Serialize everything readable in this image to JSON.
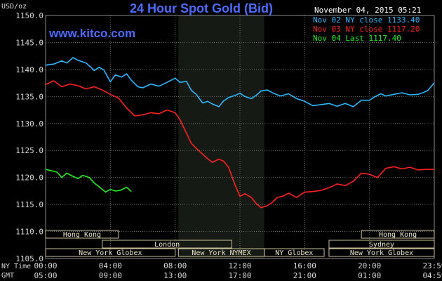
{
  "header": {
    "title": "24 Hour Spot Gold (Bid)",
    "site": "www.kitco.com",
    "unit": "USD/oz",
    "date": "November 04, 2015 05:21"
  },
  "legend": [
    {
      "label": "Nov 02 NY close 1133.40",
      "color": "#2ab8ff"
    },
    {
      "label": "Nov 03 NY close 1117.20",
      "color": "#ff2020"
    },
    {
      "label": "Nov 04 Last 1117.40",
      "color": "#22ee22"
    }
  ],
  "time_axes": {
    "ny_label": "NY Time",
    "gmt_label": "GMT",
    "ny_ticks": [
      "00:00",
      "04:00",
      "08:00",
      "12:00",
      "16:00",
      "20:00",
      "23:59"
    ],
    "gmt_ticks": [
      "05:00",
      "09:00",
      "13:00",
      "17:00",
      "21:00",
      "01:00",
      "04:59"
    ]
  },
  "sessions": [
    {
      "label": "Hong Kong",
      "start": 0,
      "end": 4.5,
      "row": 0
    },
    {
      "label": "Hong Kong",
      "start": 19.5,
      "end": 24,
      "row": 0
    },
    {
      "label": "London",
      "start": 3.5,
      "end": 11.5,
      "row": 1
    },
    {
      "label": "Sydney",
      "start": 17.5,
      "end": 24,
      "row": 1
    },
    {
      "label": "New York Globex",
      "start": 0,
      "end": 8,
      "row": 2
    },
    {
      "label": "New York NYMEX",
      "start": 8.2,
      "end": 13.5,
      "row": 2
    },
    {
      "label": "NY Globex",
      "start": 13.5,
      "end": 17.2,
      "row": 2
    },
    {
      "label": "New York Globex",
      "start": 17.5,
      "end": 24,
      "row": 2
    }
  ],
  "chart_data": {
    "type": "line",
    "title": "24 Hour Spot Gold (Bid)",
    "ylabel": "USD/oz",
    "xlabel": "NY Time",
    "xlim": [
      0,
      24
    ],
    "ylim": [
      1105,
      1150
    ],
    "y_ticks": [
      "1105.0",
      "1110.0",
      "1115.0",
      "1120.0",
      "1125.0",
      "1130.0",
      "1135.0",
      "1140.0",
      "1145.0",
      "1150.0"
    ],
    "grid": true,
    "nymex_shading": [
      8.2,
      13.5
    ],
    "series": [
      {
        "name": "Nov 02 NY close 1133.40",
        "color": "#2ab8ff",
        "x": [
          0,
          0.5,
          1,
          1.3,
          1.7,
          2,
          2.5,
          2.8,
          3,
          3.3,
          3.6,
          4,
          4.3,
          4.7,
          5,
          5.3,
          5.7,
          6,
          6.5,
          7,
          7.5,
          8,
          8.3,
          8.7,
          9,
          9.3,
          9.7,
          10,
          10.3,
          10.7,
          11,
          11.3,
          11.7,
          12,
          12.3,
          12.7,
          13,
          13.3,
          13.7,
          14,
          14.5,
          15,
          15.5,
          16,
          16.5,
          17,
          17.5,
          18,
          18.5,
          19,
          19.5,
          20,
          20.3,
          20.7,
          21,
          21.5,
          22,
          22.5,
          23,
          23.3,
          23.6,
          23.99
        ],
        "values": [
          1140.8,
          1141.0,
          1141.6,
          1141.2,
          1142.2,
          1141.7,
          1141.2,
          1140.4,
          1139.8,
          1140.4,
          1139.9,
          1137.7,
          1139.0,
          1138.6,
          1139.2,
          1138.0,
          1136.8,
          1136.6,
          1137.3,
          1136.9,
          1137.6,
          1138.4,
          1137.6,
          1137.8,
          1136.1,
          1135.4,
          1133.8,
          1134.1,
          1133.6,
          1133.1,
          1134.2,
          1134.8,
          1135.2,
          1135.6,
          1135.0,
          1134.6,
          1135.2,
          1136.0,
          1136.2,
          1135.7,
          1135.1,
          1135.5,
          1134.6,
          1134.1,
          1133.3,
          1133.5,
          1133.7,
          1133.2,
          1133.7,
          1133.1,
          1134.3,
          1134.3,
          1134.9,
          1135.5,
          1135.1,
          1135.4,
          1135.7,
          1135.3,
          1135.4,
          1135.7,
          1136.1,
          1137.5
        ]
      },
      {
        "name": "Nov 03 NY close 1117.20",
        "color": "#ff2020",
        "x": [
          0,
          0.5,
          1,
          1.5,
          2,
          2.5,
          3,
          3.5,
          4,
          4.5,
          5,
          5.5,
          6,
          6.5,
          7,
          7.5,
          8,
          8.3,
          8.7,
          9,
          9.3,
          9.7,
          10,
          10.3,
          10.7,
          11,
          11.3,
          11.7,
          12,
          12.3,
          12.7,
          13,
          13.3,
          13.7,
          14,
          14.3,
          14.7,
          15,
          15.5,
          16,
          16.5,
          17,
          17.5,
          18,
          18.5,
          19,
          19.5,
          20,
          20.5,
          21,
          21.5,
          22,
          22.5,
          23,
          23.5,
          23.99
        ],
        "values": [
          1137.2,
          1137.9,
          1136.8,
          1137.3,
          1137.0,
          1136.4,
          1136.8,
          1136.2,
          1135.4,
          1134.7,
          1132.9,
          1131.4,
          1131.6,
          1132.0,
          1131.8,
          1132.5,
          1132.0,
          1130.7,
          1128.2,
          1126.3,
          1125.4,
          1124.3,
          1123.5,
          1122.8,
          1123.4,
          1123.0,
          1121.9,
          1118.6,
          1116.5,
          1117.0,
          1116.3,
          1115.2,
          1114.4,
          1114.8,
          1115.4,
          1116.3,
          1116.6,
          1117.1,
          1116.3,
          1117.3,
          1117.4,
          1117.6,
          1118.1,
          1118.8,
          1118.5,
          1119.3,
          1120.8,
          1120.6,
          1120.0,
          1121.7,
          1122.0,
          1121.6,
          1121.9,
          1121.4,
          1121.5,
          1121.5
        ]
      },
      {
        "name": "Nov 04 Last 1117.40",
        "color": "#22ee22",
        "x": [
          0,
          0.3,
          0.7,
          1,
          1.3,
          1.7,
          2,
          2.3,
          2.7,
          3,
          3.3,
          3.7,
          4,
          4.3,
          4.6,
          5,
          5.3
        ],
        "values": [
          1121.5,
          1121.3,
          1121.0,
          1120.0,
          1120.8,
          1120.2,
          1119.8,
          1120.4,
          1120.0,
          1119.0,
          1118.3,
          1117.3,
          1117.8,
          1117.5,
          1117.6,
          1118.2,
          1117.4
        ]
      }
    ]
  }
}
